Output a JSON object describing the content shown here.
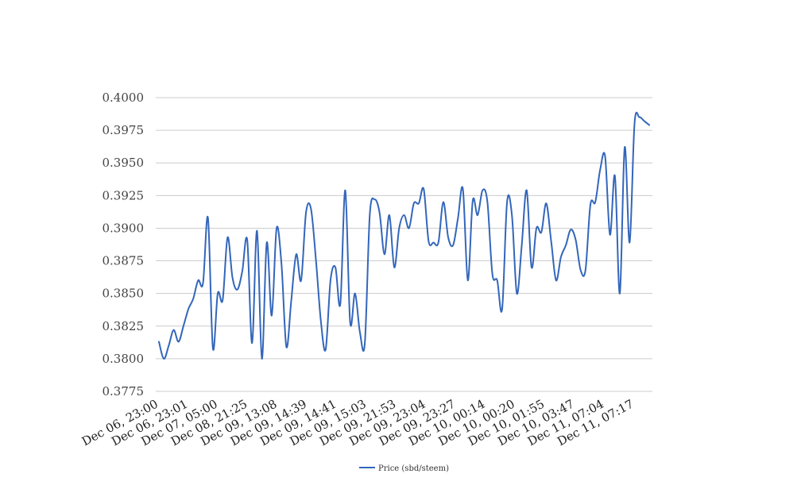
{
  "chart_data": {
    "type": "line",
    "title": "",
    "xlabel": "",
    "ylabel": "",
    "ylim": [
      0.3775,
      0.4
    ],
    "y_ticks": [
      "0.3775",
      "0.3800",
      "0.3825",
      "0.3850",
      "0.3875",
      "0.3900",
      "0.3925",
      "0.3950",
      "0.3975",
      "0.4000"
    ],
    "grid": true,
    "legend_position": "bottom",
    "x_ticks": [
      "Dec 06, 23:00",
      "Dec 06, 23:01",
      "Dec 07, 05:00",
      "Dec 08, 21:25",
      "Dec 09, 13:08",
      "Dec 09, 14:39",
      "Dec 09, 14:41",
      "Dec 09, 15:03",
      "Dec 09, 21:53",
      "Dec 09, 23:04",
      "Dec 09, 23:27",
      "Dec 10, 00:14",
      "Dec 10, 00:20",
      "Dec 10, 01:55",
      "Dec 10, 03:47",
      "Dec 11, 07:04",
      "Dec 11, 07:17"
    ],
    "series": [
      {
        "name": "Price (sbd/steem)",
        "color": "#3366bb",
        "values": [
          0.3813,
          0.38,
          0.381,
          0.3822,
          0.3813,
          0.3825,
          0.3838,
          0.3846,
          0.386,
          0.3858,
          0.3908,
          0.3808,
          0.385,
          0.3845,
          0.3893,
          0.3862,
          0.3853,
          0.3867,
          0.3891,
          0.3812,
          0.3898,
          0.38,
          0.3889,
          0.3833,
          0.39,
          0.3872,
          0.3809,
          0.3845,
          0.388,
          0.386,
          0.3912,
          0.3915,
          0.3877,
          0.383,
          0.3807,
          0.386,
          0.387,
          0.3842,
          0.3929,
          0.3828,
          0.385,
          0.382,
          0.3812,
          0.391,
          0.3922,
          0.3912,
          0.388,
          0.391,
          0.387,
          0.39,
          0.391,
          0.39,
          0.3919,
          0.3919,
          0.393,
          0.389,
          0.3889,
          0.3889,
          0.392,
          0.3893,
          0.3887,
          0.3908,
          0.393,
          0.386,
          0.3921,
          0.391,
          0.3929,
          0.392,
          0.3865,
          0.386,
          0.3838,
          0.392,
          0.391,
          0.385,
          0.3887,
          0.3929,
          0.387,
          0.39,
          0.3897,
          0.3919,
          0.389,
          0.386,
          0.3878,
          0.3887,
          0.3899,
          0.3891,
          0.3868,
          0.3868,
          0.3918,
          0.392,
          0.3945,
          0.3955,
          0.3895,
          0.394,
          0.385,
          0.3962,
          0.3889,
          0.398,
          0.3985,
          0.3982,
          0.3979
        ]
      }
    ]
  }
}
